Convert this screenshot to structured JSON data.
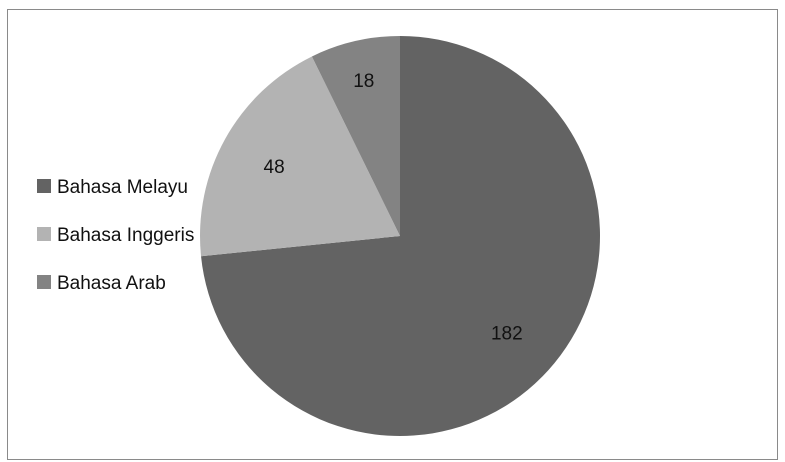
{
  "chart_data": {
    "type": "pie",
    "title": "",
    "categories": [
      "Bahasa Melayu",
      "Bahasa Inggeris",
      "Bahasa Arab"
    ],
    "values": [
      182,
      48,
      18
    ],
    "colors": [
      "#636363",
      "#b3b3b3",
      "#838383"
    ],
    "data_labels": [
      "182",
      "48",
      "18"
    ],
    "start_angle_deg": 0,
    "direction": "clockwise",
    "legend": {
      "position": "left",
      "entries": [
        "Bahasa Melayu",
        "Bahasa Inggeris",
        "Bahasa Arab"
      ]
    }
  }
}
